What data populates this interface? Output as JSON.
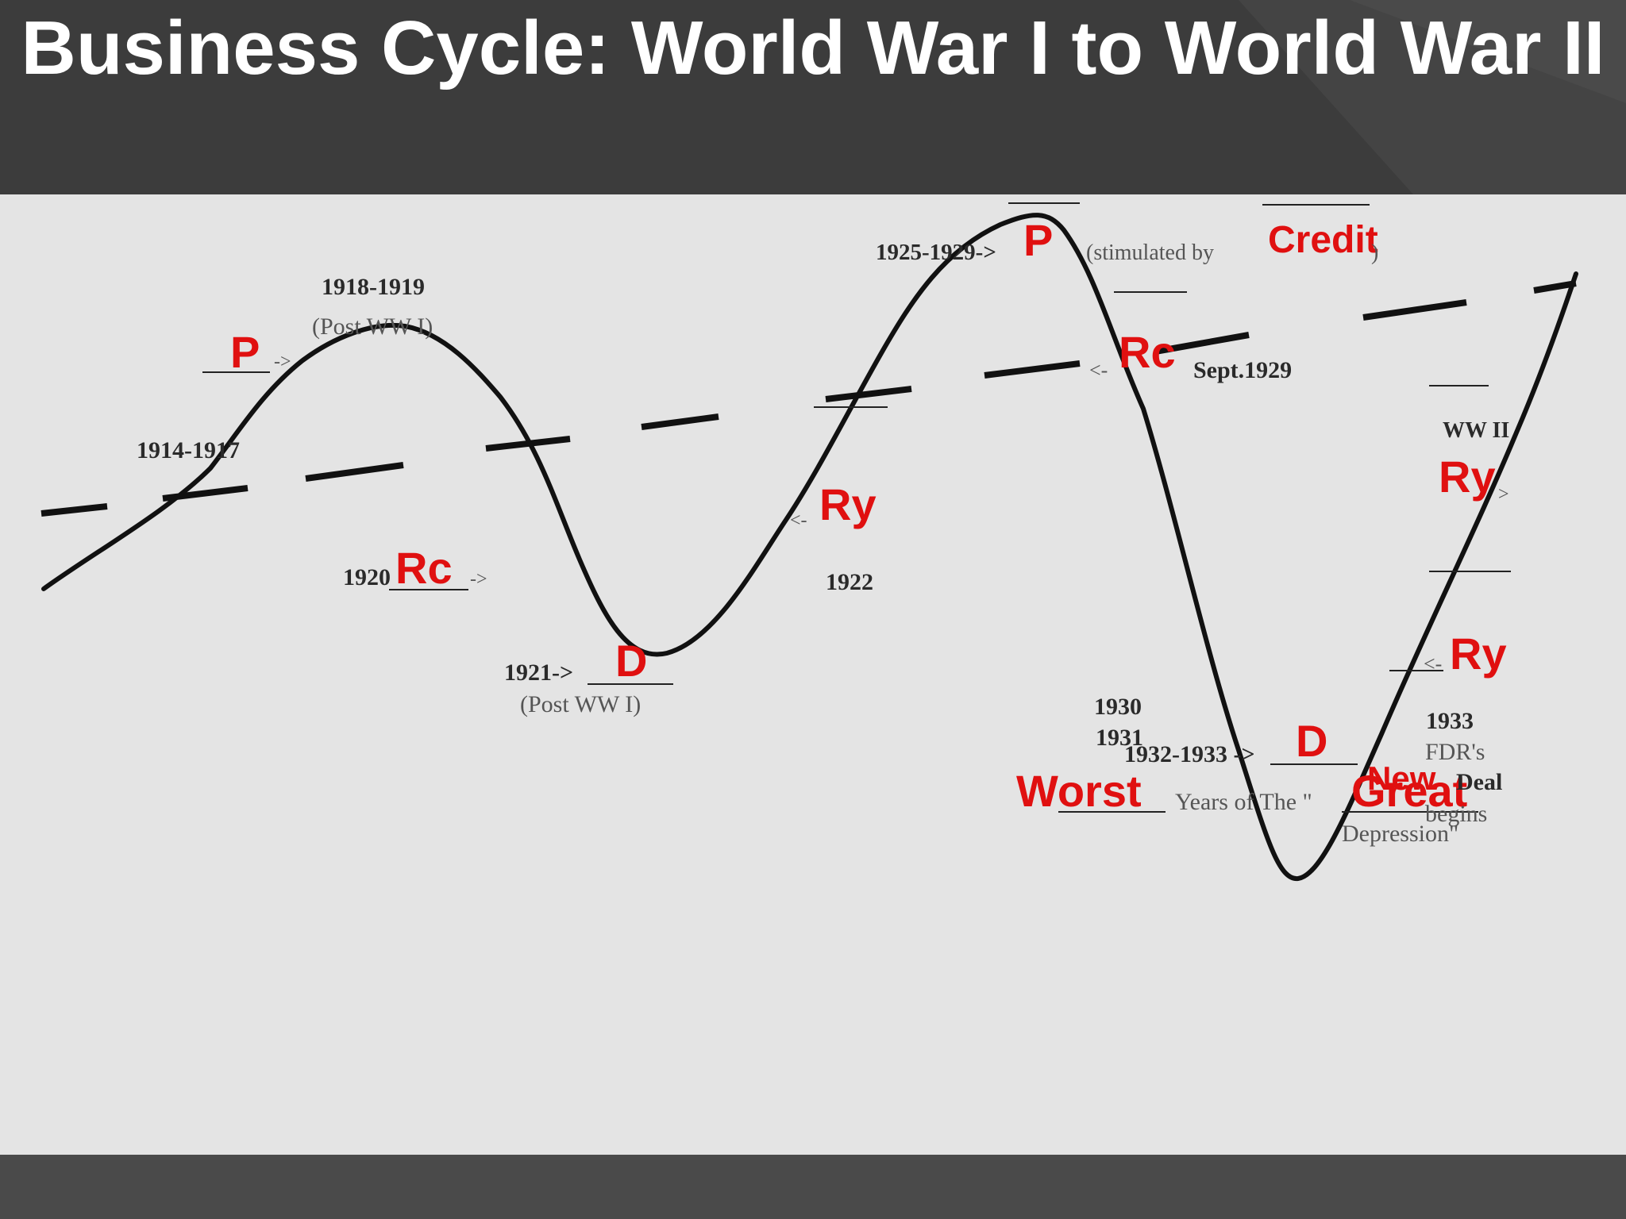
{
  "slide": {
    "title": "Business Cycle: World War I to World War II"
  },
  "colors": {
    "header_bg": "#3c3c3c",
    "panel_bg": "#e4e4e4",
    "footer_bg": "#4a4a4a",
    "annotation_red": "#e01010",
    "curve": "#111111"
  },
  "labels": {
    "p1_letter": "P",
    "p1_years": "1918-1919",
    "p1_note": "(Post WW I)",
    "p1_arrow": "->",
    "left_years": "1914-1917",
    "rc1_years": "1920",
    "rc1_letter": "Rc",
    "rc1_arrow": "->",
    "d1_years": "1921->",
    "d1_letter": "D",
    "d1_note": "(Post WW I)",
    "ry1_arrow": "<-",
    "ry1_letter": "Ry",
    "ry1_years": "1922",
    "p2_years": "1925-1929->",
    "p2_letter": "P",
    "p2_note": "(stimulated by",
    "p2_cause": "Credit",
    "p2_close": ")",
    "rc2_arrow": "<-",
    "rc2_letter": "Rc",
    "rc2_date": "Sept.1929",
    "mid_year_a": "1930",
    "mid_year_b": "1931",
    "d2_years": "1932-1933 ->",
    "d2_letter": "D",
    "worst_word": "Worst",
    "worst_text": "Years of The \"",
    "great_word": "Great",
    "depression_word": "Depression\"",
    "ww2_label": "WW II",
    "ry2_letter": "Ry",
    "ry2_arrow": ">",
    "ry3_arrow": "<-",
    "ry3_letter": "Ry",
    "nd_year": "1933",
    "nd_fdr": "FDR's",
    "nd_new": "New",
    "nd_deal": "Deal",
    "nd_begins": "begins"
  }
}
